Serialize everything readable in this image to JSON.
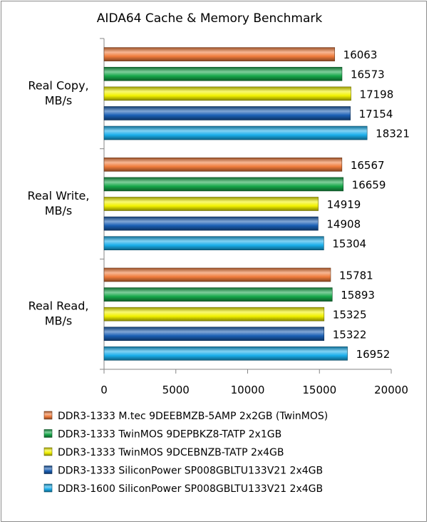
{
  "chart_data": {
    "type": "bar",
    "orientation": "horizontal",
    "title": "AIDA64 Cache & Memory Benchmark",
    "categories": [
      [
        "Real Copy,",
        "MB/s"
      ],
      [
        "Real Write,",
        "MB/s"
      ],
      [
        "Real Read,",
        "MB/s"
      ]
    ],
    "series": [
      {
        "name": "DDR3-1333 M.tec 9DEEBMZB-5AMP 2x2GB (TwinMOS)",
        "color": "#F07C3C",
        "values": [
          16063,
          16567,
          15781
        ]
      },
      {
        "name": "DDR3-1333 TwinMOS 9DEPBKZ8-TATP 2x1GB",
        "color": "#17A84A",
        "values": [
          16573,
          16659,
          15893
        ]
      },
      {
        "name": "DDR3-1333 TwinMOS 9DCEBNZB-TATP 2x4GB",
        "color": "#F2F200",
        "values": [
          17198,
          14919,
          15325
        ]
      },
      {
        "name": "DDR3-1333 SiliconPower SP008GBLTU133V21 2x4GB",
        "color": "#1A5FB4",
        "values": [
          17154,
          14908,
          15322
        ]
      },
      {
        "name": "DDR3-1600 SiliconPower SP008GBLTU133V21 2x4GB",
        "color": "#1AAEEB",
        "values": [
          18321,
          15304,
          16952
        ]
      }
    ],
    "xlim": [
      0,
      20000
    ],
    "xticks": [
      "0",
      "5000",
      "10000",
      "15000",
      "20000"
    ],
    "grid": false,
    "legend_position": "bottom",
    "data_labels": true
  }
}
